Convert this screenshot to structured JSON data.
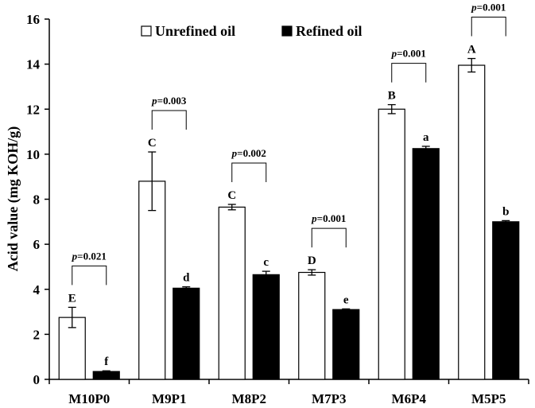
{
  "chart_data": {
    "type": "bar",
    "xlabel": "",
    "ylabel": "Acid value (mg KOH/g)",
    "ylim": [
      0,
      16
    ],
    "yticks": [
      0,
      2,
      4,
      6,
      8,
      10,
      12,
      14,
      16
    ],
    "categories": [
      "M10P0",
      "M9P1",
      "M8P2",
      "M7P3",
      "M6P4",
      "M5P5"
    ],
    "series": [
      {
        "name": "Unrefined oil",
        "fill": "#ffffff",
        "values": [
          2.75,
          8.8,
          7.65,
          4.75,
          12.0,
          13.95
        ],
        "errors": [
          0.45,
          1.3,
          0.12,
          0.12,
          0.2,
          0.3
        ],
        "letters": [
          "E",
          "C",
          "C",
          "D",
          "B",
          "A"
        ]
      },
      {
        "name": "Refined oil",
        "fill": "#000000",
        "values": [
          0.35,
          4.05,
          4.65,
          3.1,
          10.25,
          7.0
        ],
        "errors": [
          0.03,
          0.06,
          0.15,
          0.03,
          0.1,
          0.05
        ],
        "letters": [
          "f",
          "d",
          "c",
          "e",
          "a",
          "b"
        ]
      }
    ],
    "p_values": [
      "0.021",
      "0.003",
      "0.002",
      "0.001",
      "0.001",
      "0.001"
    ],
    "p_symbol": "p",
    "grid": false,
    "legend_position": "top"
  }
}
